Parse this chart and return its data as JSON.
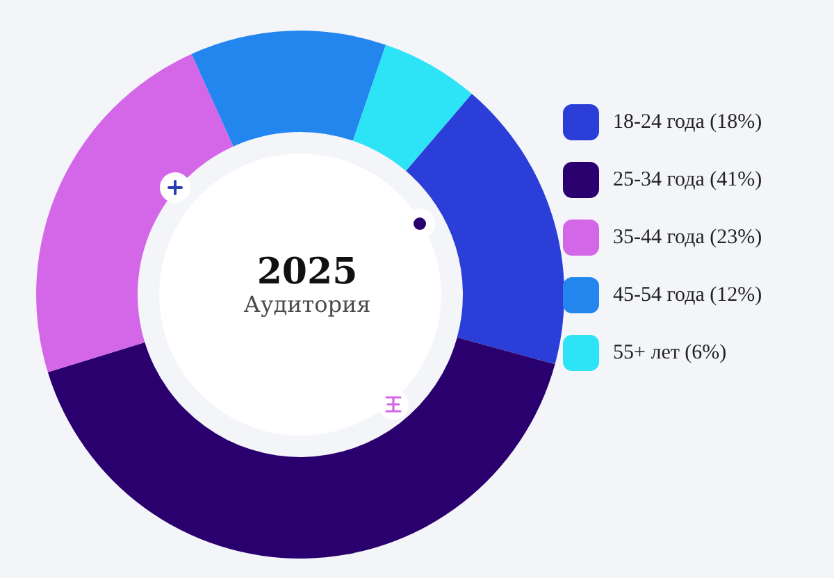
{
  "chart_data": {
    "type": "donut",
    "title": "2025",
    "subtitle": "Аудитория",
    "categories": [
      "18-24 года (18%)",
      "25-34 года (41%)",
      "35-44 года (23%)",
      "45-54 года (12%)",
      "55+ лет (6%)"
    ],
    "values": [
      18,
      41,
      23,
      12,
      6
    ],
    "colors": [
      "#2b3fd8",
      "#2a006e",
      "#d466e8",
      "#2386ef",
      "#2de3f6"
    ],
    "legend": "right"
  }
}
